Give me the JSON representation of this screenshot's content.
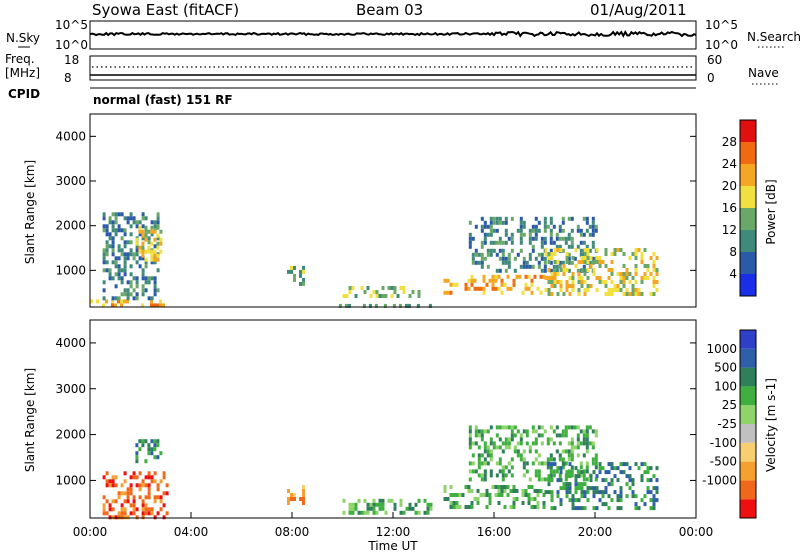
{
  "header": {
    "title": "Syowa East (fitACF)",
    "beam": "Beam 03",
    "date": "01/Aug/2011"
  },
  "top_panel": {
    "nsky_label": "N.Sky",
    "nsky_top_tick": "10^5",
    "nsky_bottom_tick": "10^0",
    "nsearch_label": "N.Search",
    "nsearch_top_tick": "10^5",
    "nsearch_bottom_tick": "10^0",
    "freq_label": "Freq.",
    "freq_unit": "[MHz]",
    "freq_ticks": [
      "18",
      "8"
    ],
    "nave_label": "Nave",
    "nave_ticks": [
      "60",
      "0"
    ],
    "cpid_label": "CPID",
    "cpid_text": "normal (fast) 151 RF"
  },
  "colors": {
    "power_scale": [
      "#1a2ee8",
      "#2b5aa8",
      "#3f8a78",
      "#6aa86a",
      "#f0e040",
      "#f5a623",
      "#f06a10",
      "#e01010"
    ],
    "velocity_scale": [
      "#ee1010",
      "#f0681a",
      "#f5a030",
      "#f7cf70",
      "#c0c0c0",
      "#8fd46a",
      "#3fb040",
      "#2f7f5a",
      "#2f5fa8",
      "#2f3fc8"
    ]
  },
  "chart_data": [
    {
      "type": "heatmap",
      "name": "power",
      "xlabel": "Time UT",
      "ylabel": "Slant Range [km]",
      "x_ticks": [
        "00:00",
        "04:00",
        "08:00",
        "12:00",
        "16:00",
        "20:00",
        "00:00"
      ],
      "y_ticks": [
        1000,
        2000,
        3000,
        4000
      ],
      "ylim": [
        180,
        4500
      ],
      "colorbar_label": "Power [dB]",
      "colorbar_ticks": [
        "4",
        "8",
        "12",
        "16",
        "20",
        "24",
        "28"
      ],
      "clim": [
        0,
        32
      ],
      "regions": [
        {
          "t": [
            0.0,
            3.0
          ],
          "r": [
            180,
            350
          ],
          "level": 22
        },
        {
          "t": [
            0.5,
            2.7
          ],
          "r": [
            350,
            2300
          ],
          "level": 9
        },
        {
          "t": [
            1.8,
            2.8
          ],
          "r": [
            1200,
            2000
          ],
          "level": 16
        },
        {
          "t": [
            7.8,
            8.4
          ],
          "r": [
            700,
            1100
          ],
          "level": 14
        },
        {
          "t": [
            9.5,
            13.5
          ],
          "r": [
            180,
            250
          ],
          "level": 8
        },
        {
          "t": [
            10.0,
            13.0
          ],
          "r": [
            450,
            650
          ],
          "level": 14
        },
        {
          "t": [
            14.0,
            18.0
          ],
          "r": [
            500,
            900
          ],
          "level": 20
        },
        {
          "t": [
            15.0,
            20.0
          ],
          "r": [
            1000,
            2200
          ],
          "level": 10
        },
        {
          "t": [
            18.0,
            22.5
          ],
          "r": [
            500,
            1500
          ],
          "level": 16
        }
      ]
    },
    {
      "type": "heatmap",
      "name": "velocity",
      "xlabel": "Time UT",
      "ylabel": "Slant Range [km]",
      "x_ticks": [
        "00:00",
        "04:00",
        "08:00",
        "12:00",
        "16:00",
        "20:00",
        "00:00"
      ],
      "y_ticks": [
        1000,
        2000,
        3000,
        4000
      ],
      "ylim": [
        180,
        4500
      ],
      "colorbar_label": "Velocity [m s-1]",
      "colorbar_ticks": [
        "1000",
        "500",
        "100",
        "25",
        "-25",
        "-100",
        "-500",
        "-1000"
      ],
      "clim": [
        -1000,
        1000
      ],
      "regions": [
        {
          "t": [
            0.5,
            3.0
          ],
          "r": [
            180,
            1200
          ],
          "level": -500
        },
        {
          "t": [
            1.8,
            2.8
          ],
          "r": [
            1400,
            1900
          ],
          "level": 500
        },
        {
          "t": [
            7.8,
            8.4
          ],
          "r": [
            500,
            900
          ],
          "level": -300
        },
        {
          "t": [
            10.0,
            13.5
          ],
          "r": [
            300,
            600
          ],
          "level": 60
        },
        {
          "t": [
            14.0,
            18.0
          ],
          "r": [
            400,
            900
          ],
          "level": 60
        },
        {
          "t": [
            15.0,
            20.0
          ],
          "r": [
            1000,
            2200
          ],
          "level": 60
        },
        {
          "t": [
            18.0,
            22.5
          ],
          "r": [
            400,
            1400
          ],
          "level": 200
        }
      ]
    }
  ]
}
